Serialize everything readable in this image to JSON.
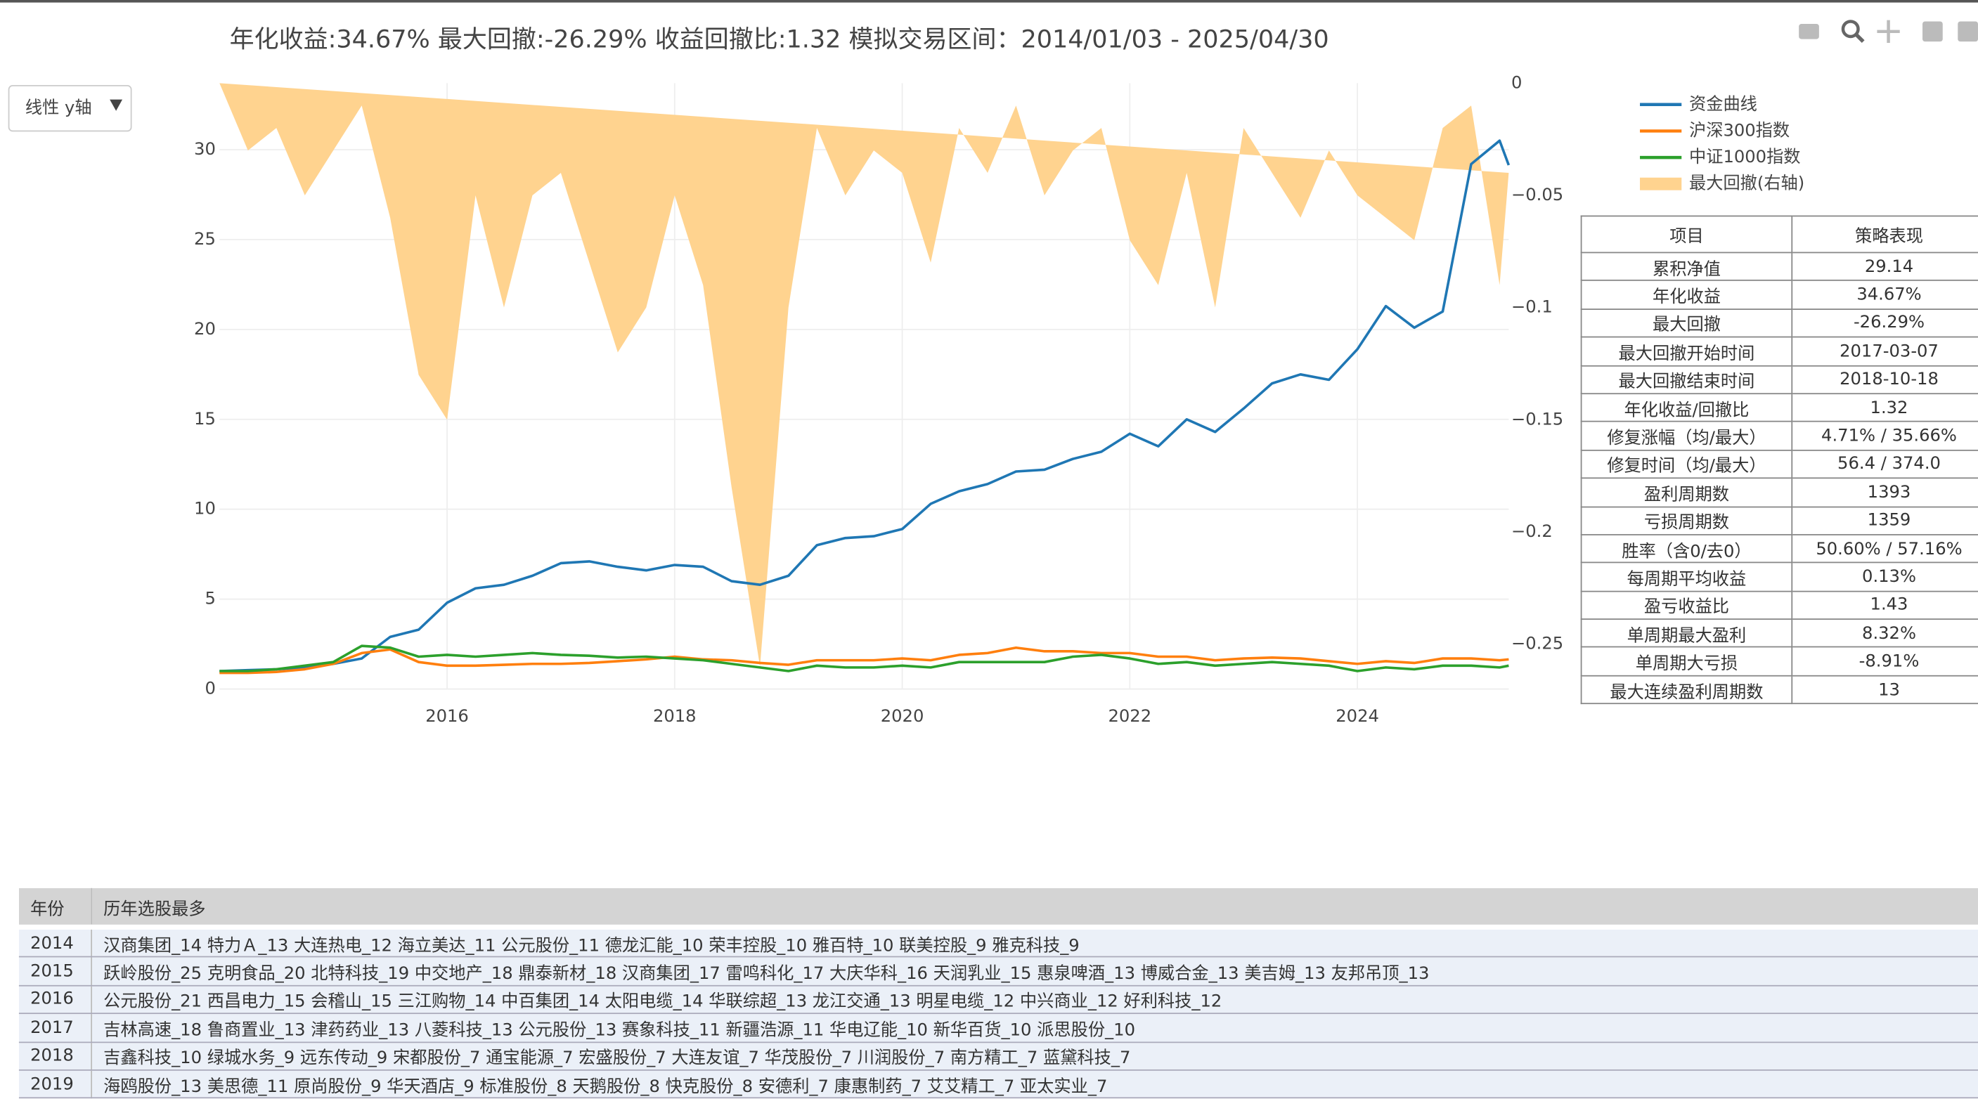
{
  "title": "年化收益:34.67%  最大回撤:-26.29%  收益回撤比:1.32  模拟交易区间：2014/01/03 - 2025/04/30",
  "y_axis_toggle": "线性 y轴",
  "chart_data": {
    "type": "line",
    "x": [
      2014,
      2014.25,
      2014.5,
      2014.75,
      2015,
      2015.25,
      2015.5,
      2015.75,
      2016,
      2016.25,
      2016.5,
      2016.75,
      2017,
      2017.25,
      2017.5,
      2017.75,
      2018,
      2018.25,
      2018.5,
      2018.75,
      2019,
      2019.25,
      2019.5,
      2019.75,
      2020,
      2020.25,
      2020.5,
      2020.75,
      2021,
      2021.25,
      2021.5,
      2021.75,
      2022,
      2022.25,
      2022.5,
      2022.75,
      2023,
      2023.25,
      2023.5,
      2023.75,
      2024,
      2024.25,
      2024.5,
      2024.75,
      2025,
      2025.25,
      2025.33
    ],
    "xlim": [
      2014,
      2025.33
    ],
    "xticks": [
      2016,
      2018,
      2020,
      2022,
      2024
    ],
    "ylim": [
      0,
      33.7
    ],
    "yticks": [
      0,
      5,
      10,
      15,
      20,
      25,
      30
    ],
    "y2lim": [
      -0.27,
      0
    ],
    "y2ticks": [
      0,
      {
        "value": -0.05,
        "label": "−0.05"
      },
      {
        "value": -0.1,
        "label": "−0.1"
      },
      {
        "value": -0.15,
        "label": "−0.15"
      },
      {
        "value": -0.2,
        "label": "−0.2"
      },
      {
        "value": -0.25,
        "label": "−0.25"
      }
    ],
    "grid": true,
    "legend": "right",
    "series": [
      {
        "name": "最大回撤(右轴)",
        "color": "#ffd38f",
        "axis": "y2",
        "kind": "area",
        "values": [
          0,
          -0.03,
          -0.02,
          -0.05,
          -0.03,
          -0.01,
          -0.06,
          -0.13,
          -0.15,
          -0.05,
          -0.1,
          -0.05,
          -0.04,
          -0.08,
          -0.12,
          -0.1,
          -0.05,
          -0.09,
          -0.18,
          -0.26,
          -0.1,
          -0.02,
          -0.05,
          -0.03,
          -0.04,
          -0.08,
          -0.02,
          -0.04,
          -0.01,
          -0.05,
          -0.03,
          -0.02,
          -0.07,
          -0.09,
          -0.04,
          -0.1,
          -0.02,
          -0.04,
          -0.06,
          -0.03,
          -0.05,
          -0.06,
          -0.07,
          -0.02,
          -0.01,
          -0.09,
          -0.04
        ]
      },
      {
        "name": "资金曲线",
        "color": "#1f77b4",
        "values": [
          1.0,
          1.05,
          1.1,
          1.2,
          1.4,
          1.7,
          2.9,
          3.3,
          4.8,
          5.6,
          5.8,
          6.3,
          7.0,
          7.1,
          6.8,
          6.6,
          6.9,
          6.8,
          6.0,
          5.8,
          6.3,
          8.0,
          8.4,
          8.5,
          8.9,
          10.3,
          11.0,
          11.4,
          12.1,
          12.2,
          12.8,
          13.2,
          14.2,
          13.5,
          15.0,
          14.3,
          15.6,
          17.0,
          17.5,
          17.2,
          18.9,
          21.3,
          20.1,
          21.0,
          29.2,
          30.5,
          29.14
        ]
      },
      {
        "name": "沪深300指数",
        "color": "#ff7f0e",
        "values": [
          0.9,
          0.9,
          0.95,
          1.1,
          1.4,
          2.0,
          2.2,
          1.5,
          1.3,
          1.3,
          1.35,
          1.4,
          1.4,
          1.45,
          1.55,
          1.65,
          1.8,
          1.65,
          1.6,
          1.45,
          1.35,
          1.6,
          1.6,
          1.6,
          1.7,
          1.6,
          1.9,
          2.0,
          2.3,
          2.1,
          2.1,
          2.0,
          2.0,
          1.8,
          1.8,
          1.6,
          1.7,
          1.75,
          1.7,
          1.55,
          1.4,
          1.55,
          1.45,
          1.7,
          1.7,
          1.6,
          1.65
        ]
      },
      {
        "name": "中证1000指数",
        "color": "#2ca02c",
        "values": [
          1.0,
          1.0,
          1.1,
          1.3,
          1.5,
          2.4,
          2.3,
          1.8,
          1.9,
          1.8,
          1.9,
          2.0,
          1.9,
          1.85,
          1.75,
          1.8,
          1.7,
          1.6,
          1.4,
          1.2,
          1.0,
          1.3,
          1.2,
          1.2,
          1.3,
          1.2,
          1.5,
          1.5,
          1.5,
          1.5,
          1.8,
          1.9,
          1.7,
          1.4,
          1.5,
          1.3,
          1.4,
          1.5,
          1.4,
          1.3,
          1.0,
          1.2,
          1.1,
          1.3,
          1.3,
          1.2,
          1.3
        ]
      }
    ],
    "legend_order": [
      "资金曲线",
      "沪深300指数",
      "中证1000指数",
      "最大回撤(右轴)"
    ]
  },
  "stats_table": {
    "header": [
      "项目",
      "策略表现"
    ],
    "rows": [
      [
        "累积净值",
        "29.14"
      ],
      [
        "年化收益",
        "34.67%"
      ],
      [
        "最大回撤",
        "-26.29%"
      ],
      [
        "最大回撤开始时间",
        "2017-03-07"
      ],
      [
        "最大回撤结束时间",
        "2018-10-18"
      ],
      [
        "年化收益/回撤比",
        "1.32"
      ],
      [
        "修复涨幅（均/最大）",
        "4.71% / 35.66%"
      ],
      [
        "修复时间（均/最大）",
        "56.4 / 374.0"
      ],
      [
        "盈利周期数",
        "1393"
      ],
      [
        "亏损周期数",
        "1359"
      ],
      [
        "胜率（含0/去0）",
        "50.60% / 57.16%"
      ],
      [
        "每周期平均收益",
        "0.13%"
      ],
      [
        "盈亏收益比",
        "1.43"
      ],
      [
        "单周期最大盈利",
        "8.32%"
      ],
      [
        "单周期大亏损",
        "-8.91%"
      ],
      [
        "最大连续盈利周期数",
        "13"
      ]
    ]
  },
  "picks_table": {
    "header": [
      "年份",
      "历年选股最多"
    ],
    "rows": [
      [
        "2014",
        "汉商集团_14 特力Ａ_13 大连热电_12 海立美达_11 公元股份_11 德龙汇能_10 荣丰控股_10 雅百特_10 联美控股_9 雅克科技_9"
      ],
      [
        "2015",
        "跃岭股份_25 克明食品_20 北特科技_19 中交地产_18 鼎泰新材_18 汉商集团_17 雷鸣科化_17 大庆华科_16 天润乳业_15 惠泉啤酒_13 博威合金_13 美吉姆_13 友邦吊顶_13"
      ],
      [
        "2016",
        "公元股份_21 西昌电力_15 会稽山_15 三江购物_14 中百集团_14 太阳电缆_14 华联综超_13 龙江交通_13 明星电缆_12 中兴商业_12 好利科技_12"
      ],
      [
        "2017",
        "吉林高速_18 鲁商置业_13 津药药业_13 八菱科技_13 公元股份_13 赛象科技_11 新疆浩源_11 华电辽能_10 新华百货_10 派思股份_10"
      ],
      [
        "2018",
        "吉鑫科技_10 绿城水务_9 远东传动_9 宋都股份_7 通宝能源_7 宏盛股份_7 大连友谊_7 华茂股份_7 川润股份_7 南方精工_7 蓝黛科技_7"
      ],
      [
        "2019",
        "海鸥股份_13 美思德_11 原尚股份_9 华天酒店_9 标准股份_8 天鹅股份_8 快克股份_8 安德利_7 康惠制药_7 艾艾精工_7 亚太实业_7"
      ]
    ]
  }
}
